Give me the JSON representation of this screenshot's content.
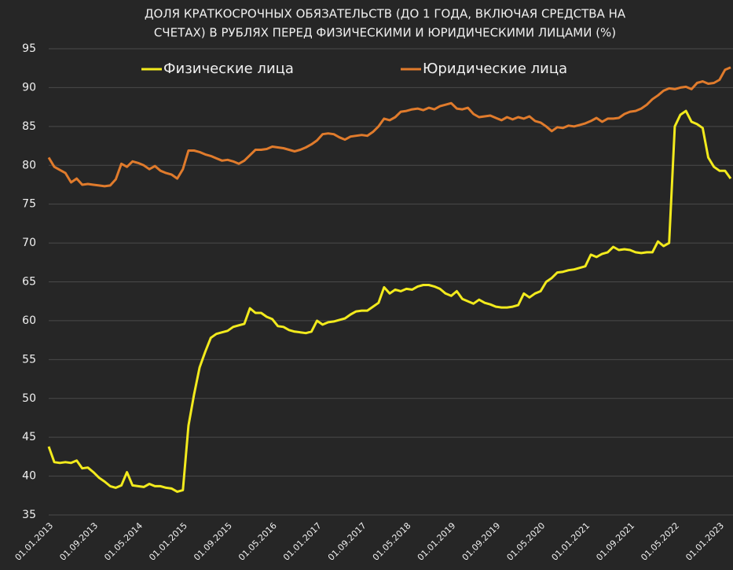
{
  "chart_data": {
    "type": "line",
    "title": [
      "ДОЛЯ КРАТКОСРОЧНЫХ ОБЯЗАТЕЛЬСТВ (ДО 1 ГОДА, ВКЛЮЧАЯ СРЕДСТВА НА",
      "СЧЕТАХ) В РУБЛЯХ ПЕРЕД ФИЗИЧЕСКИМИ И ЮРИДИЧЕСКИМИ ЛИЦАМИ (%)"
    ],
    "categories": [
      "01.01.2013",
      null,
      null,
      null,
      null,
      null,
      null,
      null,
      "01.09.2013",
      null,
      null,
      null,
      null,
      null,
      null,
      null,
      "01.05.2014",
      null,
      null,
      null,
      null,
      null,
      null,
      null,
      "01.01.2015",
      null,
      null,
      null,
      null,
      null,
      null,
      null,
      "01.09.2015",
      null,
      null,
      null,
      null,
      null,
      null,
      null,
      "01.05.2016",
      null,
      null,
      null,
      null,
      null,
      null,
      null,
      "01.01.2017",
      null,
      null,
      null,
      null,
      null,
      null,
      null,
      "01.09.2017",
      null,
      null,
      null,
      null,
      null,
      null,
      null,
      "01.05.2018",
      null,
      null,
      null,
      null,
      null,
      null,
      null,
      "01.01.2019",
      null,
      null,
      null,
      null,
      null,
      null,
      null,
      "01.09.2019",
      null,
      null,
      null,
      null,
      null,
      null,
      null,
      "01.05.2020",
      null,
      null,
      null,
      null,
      null,
      null,
      null,
      "01.01.2021",
      null,
      null,
      null,
      null,
      null,
      null,
      null,
      "01.09.2021",
      null,
      null,
      null,
      null,
      null,
      null,
      null,
      "01.05.2022",
      null,
      null,
      null,
      null,
      null,
      null,
      null,
      "01.01.2023",
      null,
      null
    ],
    "series": [
      {
        "name": "Физические лица",
        "color": "#f2ea1d",
        "values": [
          43.8,
          41.8,
          41.7,
          41.8,
          41.7,
          42.0,
          41.0,
          41.1,
          40.5,
          39.8,
          39.3,
          38.7,
          38.5,
          38.8,
          40.5,
          38.8,
          38.7,
          38.6,
          39.0,
          38.7,
          38.7,
          38.5,
          38.4,
          38.0,
          38.2,
          46.5,
          50.5,
          54.0,
          56.0,
          57.8,
          58.3,
          58.5,
          58.7,
          59.2,
          59.4,
          59.6,
          61.6,
          61.0,
          61.0,
          60.5,
          60.2,
          59.3,
          59.2,
          58.8,
          58.6,
          58.5,
          58.4,
          58.6,
          60.0,
          59.5,
          59.8,
          59.9,
          60.1,
          60.3,
          60.8,
          61.2,
          61.3,
          61.3,
          61.8,
          62.3,
          64.3,
          63.5,
          64.0,
          63.8,
          64.1,
          64.0,
          64.4,
          64.6,
          64.6,
          64.4,
          64.1,
          63.5,
          63.2,
          63.8,
          62.8,
          62.5,
          62.2,
          62.7,
          62.3,
          62.1,
          61.8,
          61.7,
          61.7,
          61.8,
          62.0,
          63.5,
          63.0,
          63.5,
          63.8,
          65.0,
          65.5,
          66.2,
          66.3,
          66.5,
          66.6,
          66.8,
          67.0,
          68.5,
          68.2,
          68.6,
          68.8,
          69.5,
          69.1,
          69.2,
          69.1,
          68.8,
          68.7,
          68.8,
          68.8,
          70.2,
          69.6,
          70.0,
          85.0,
          86.5,
          87.0,
          85.6,
          85.3,
          84.8,
          81.0,
          79.8,
          79.3,
          79.3,
          78.3
        ]
      },
      {
        "name": "Юридические лица",
        "color": "#e07b2c",
        "values": [
          81.0,
          79.8,
          79.4,
          79.0,
          77.8,
          78.3,
          77.5,
          77.6,
          77.5,
          77.4,
          77.3,
          77.4,
          78.2,
          80.2,
          79.8,
          80.5,
          80.3,
          80.0,
          79.5,
          79.9,
          79.3,
          79.0,
          78.8,
          78.3,
          79.5,
          81.9,
          81.9,
          81.7,
          81.4,
          81.2,
          80.9,
          80.6,
          80.7,
          80.5,
          80.2,
          80.6,
          81.3,
          82.0,
          82.0,
          82.1,
          82.4,
          82.3,
          82.2,
          82.0,
          81.8,
          82.0,
          82.3,
          82.7,
          83.2,
          84.0,
          84.1,
          84.0,
          83.6,
          83.3,
          83.7,
          83.8,
          83.9,
          83.8,
          84.3,
          85.0,
          86.0,
          85.8,
          86.2,
          86.9,
          87.0,
          87.2,
          87.3,
          87.1,
          87.4,
          87.2,
          87.6,
          87.8,
          88.0,
          87.3,
          87.2,
          87.4,
          86.6,
          86.2,
          86.3,
          86.4,
          86.1,
          85.8,
          86.2,
          85.9,
          86.2,
          86.0,
          86.3,
          85.7,
          85.5,
          85.0,
          84.4,
          84.9,
          84.8,
          85.1,
          85.0,
          85.2,
          85.4,
          85.7,
          86.1,
          85.6,
          86.0,
          86.0,
          86.1,
          86.6,
          86.9,
          87.0,
          87.3,
          87.8,
          88.5,
          89.0,
          89.6,
          89.9,
          89.8,
          90.0,
          90.1,
          89.8,
          90.6,
          90.8,
          90.5,
          90.6,
          91.0,
          92.3,
          92.6
        ]
      }
    ],
    "ylim": [
      35,
      95
    ],
    "yticks": [
      35,
      40,
      45,
      50,
      55,
      60,
      65,
      70,
      75,
      80,
      85,
      90,
      95
    ],
    "grid": true
  }
}
